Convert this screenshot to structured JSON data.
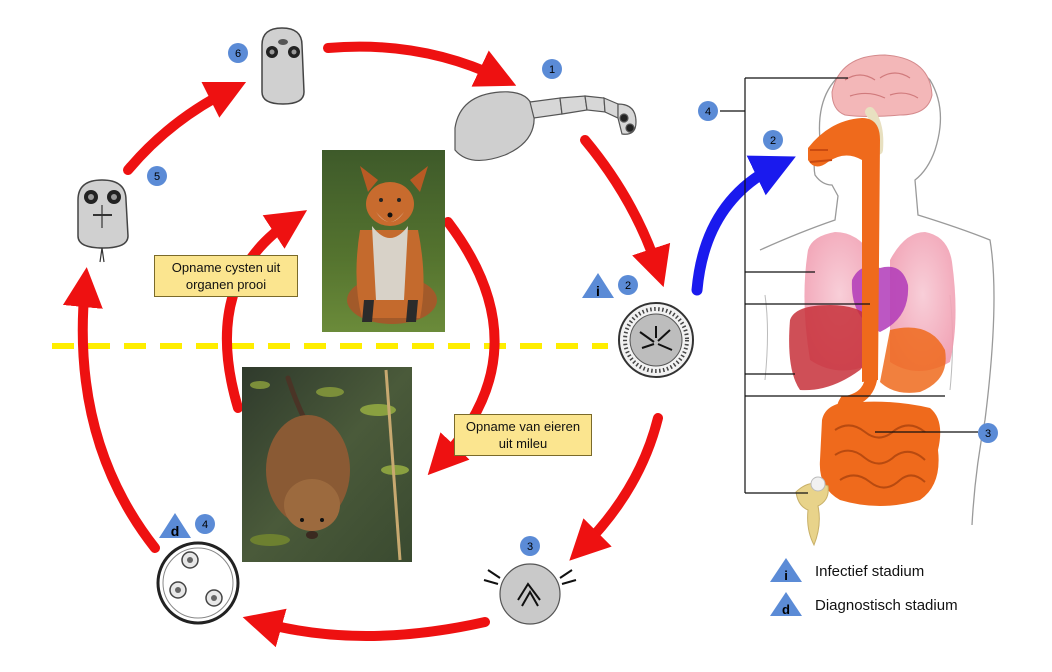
{
  "colors": {
    "cycle_arrow": "#ee1111",
    "infection_arrow": "#1a1aee",
    "badge": "#5b8bd6",
    "callout_bg": "#fbe58f",
    "dashed_line": "#ffee00",
    "organ_orange": "#ef6a1c"
  },
  "badges": {
    "b1": "1",
    "b2": "2",
    "b3": "3",
    "b4": "4",
    "b5": "5",
    "b6": "6",
    "human2": "2",
    "human3": "3",
    "human4": "4"
  },
  "stage_markers": {
    "infective": "i",
    "diagnostic": "d"
  },
  "callouts": {
    "cysts_line1": "Opname cysten uit",
    "cysts_line2": "organen prooi",
    "eggs_line1": "Opname van eieren",
    "eggs_line2": "uit mileu"
  },
  "legend": {
    "infective_symbol": "i",
    "infective_label": "Infectief stadium",
    "diagnostic_symbol": "d",
    "diagnostic_label": "Diagnostisch stadium"
  },
  "photos": {
    "top_animal": "fox",
    "bottom_animal": "muskrat"
  }
}
